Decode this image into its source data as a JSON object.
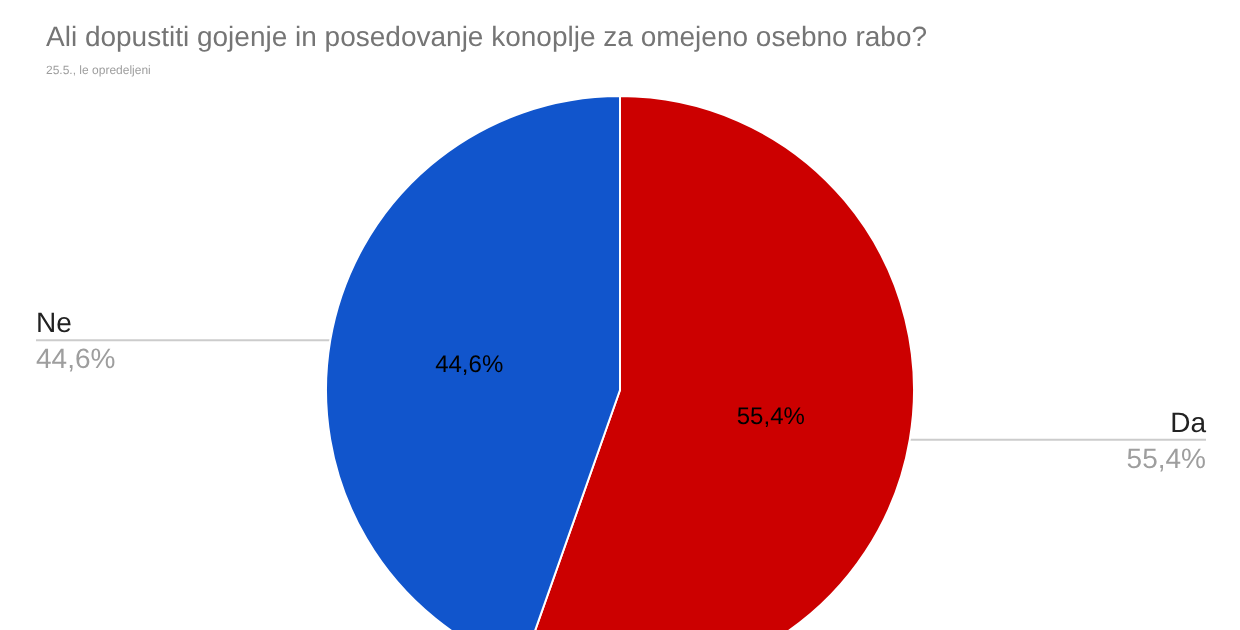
{
  "chart_data": {
    "type": "pie",
    "title": "Ali dopustiti gojenje in posedovanje konoplje za omejeno osebno rabo?",
    "subtitle": "25.5., le opredeljeni",
    "categories": [
      "Da",
      "Ne"
    ],
    "values": [
      55.4,
      44.6
    ],
    "colors": [
      "#cc0000",
      "#1155cc"
    ],
    "value_labels": [
      "55,4%",
      "44,6%"
    ],
    "legend": false
  }
}
